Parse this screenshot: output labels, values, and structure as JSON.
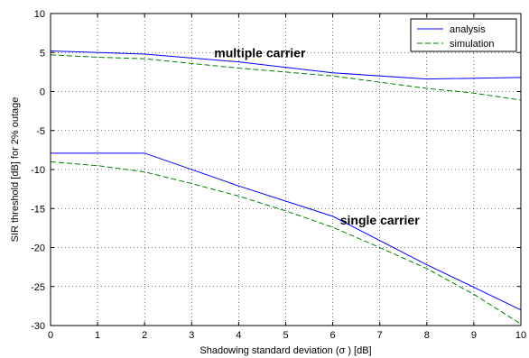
{
  "chart_data": {
    "type": "line",
    "xlabel": "Shadowing standard deviation (σ ) [dB]",
    "ylabel": "SIR threshold [dB] for 2% outage",
    "xlim": [
      0,
      10
    ],
    "ylim": [
      -30,
      10
    ],
    "xticks": [
      0,
      1,
      2,
      3,
      4,
      5,
      6,
      7,
      8,
      9,
      10
    ],
    "yticks": [
      -30,
      -25,
      -20,
      -15,
      -10,
      -5,
      0,
      5,
      10
    ],
    "grid": true,
    "legend_position": "top-right",
    "annotations": [
      {
        "text": "multiple carrier",
        "x": 4.45,
        "y": 5.0
      },
      {
        "text": "single carrier",
        "x": 7.0,
        "y": -16.5
      }
    ],
    "series": [
      {
        "name": "analysis",
        "group": "multiple carrier",
        "style": "solid",
        "color": "#0000ff",
        "x": [
          0,
          2,
          4,
          6,
          8,
          10
        ],
        "y": [
          5.2,
          4.8,
          3.8,
          2.4,
          1.6,
          1.8
        ]
      },
      {
        "name": "simulation",
        "group": "multiple carrier",
        "style": "dashed",
        "color": "#008000",
        "x": [
          0,
          1,
          2,
          3,
          4,
          5,
          6,
          7,
          8,
          9,
          10
        ],
        "y": [
          4.7,
          4.4,
          4.2,
          3.6,
          3.0,
          2.5,
          2.0,
          1.2,
          0.4,
          -0.2,
          -1.1
        ]
      },
      {
        "name": "analysis",
        "group": "single carrier",
        "style": "solid",
        "color": "#0000ff",
        "x": [
          0,
          2,
          4,
          6,
          8,
          10
        ],
        "y": [
          -7.9,
          -7.9,
          -12.1,
          -16.0,
          -22.2,
          -28.0
        ]
      },
      {
        "name": "simulation",
        "group": "single carrier",
        "style": "dashed",
        "color": "#008000",
        "x": [
          0,
          1,
          2,
          3,
          4,
          5,
          6,
          7,
          8,
          9,
          10
        ],
        "y": [
          -9.0,
          -9.5,
          -10.3,
          -11.8,
          -13.4,
          -15.3,
          -17.4,
          -20.0,
          -22.7,
          -26.0,
          -29.8
        ]
      }
    ],
    "legend": [
      {
        "label": "analysis",
        "style": "solid",
        "color": "#0000ff"
      },
      {
        "label": "simulation",
        "style": "dashed",
        "color": "#008000"
      }
    ]
  }
}
